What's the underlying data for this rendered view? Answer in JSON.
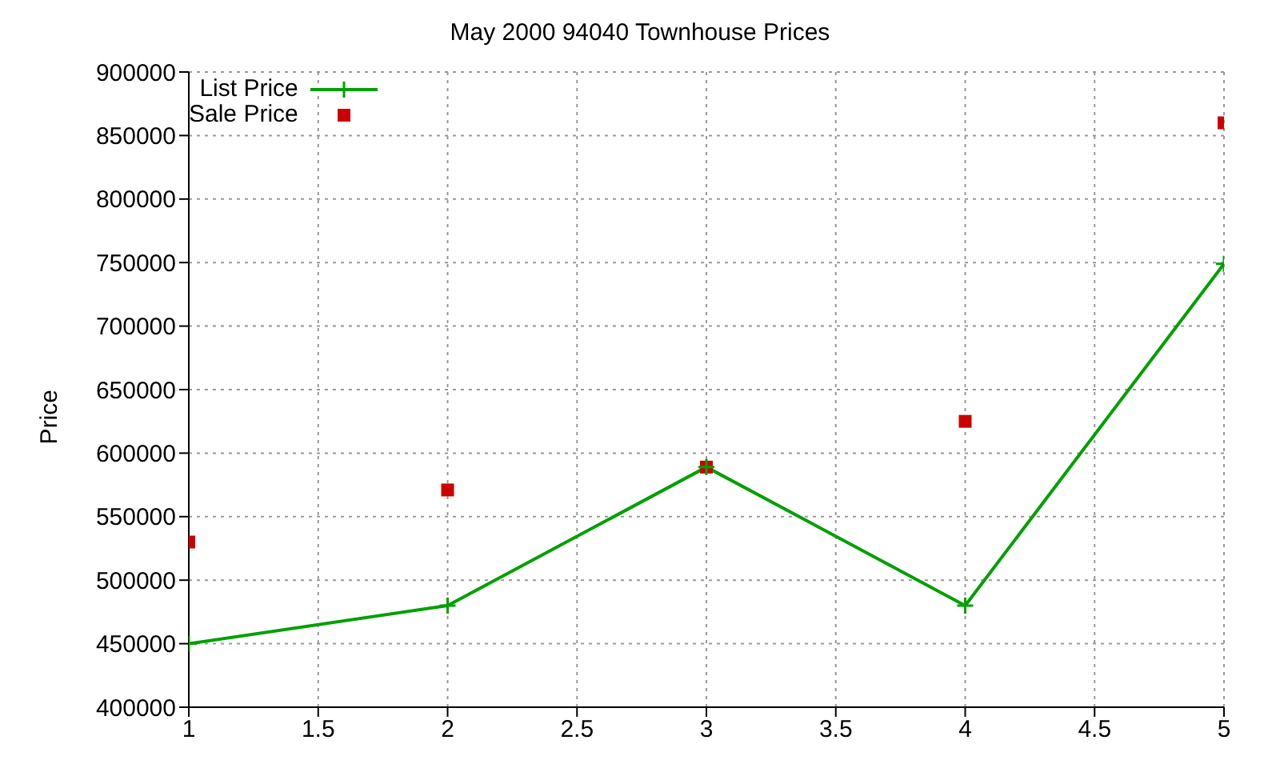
{
  "chart_data": {
    "type": "line",
    "title": "May 2000 94040 Townhouse Prices",
    "ylabel": "Price",
    "x": [
      1,
      2,
      3,
      4,
      5
    ],
    "series": [
      {
        "name": "List Price",
        "color": "#00a000",
        "marker": "cross",
        "values": [
          450000,
          480000,
          589000,
          480000,
          749000
        ]
      },
      {
        "name": "Sale Price",
        "type": "scatter",
        "color": "#cc0000",
        "marker": "square",
        "values": [
          530000,
          571000,
          589000,
          625000,
          860000
        ]
      }
    ],
    "xlim": [
      1,
      5
    ],
    "xticks": [
      1,
      1.5,
      2,
      2.5,
      3,
      3.5,
      4,
      4.5,
      5
    ],
    "ylim": [
      400000,
      900000
    ],
    "yticks": [
      400000,
      450000,
      500000,
      550000,
      600000,
      650000,
      700000,
      750000,
      800000,
      850000,
      900000
    ],
    "grid": true,
    "legend": "top left"
  }
}
